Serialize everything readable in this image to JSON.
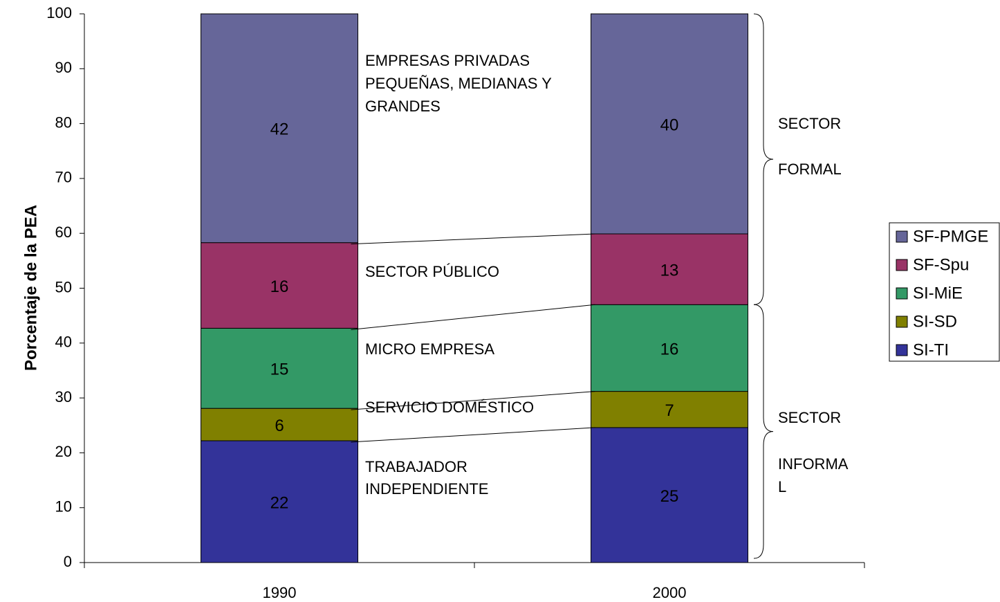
{
  "chart_data": {
    "type": "stacked_bar",
    "y_axis_label": "Porcentaje de la PEA",
    "categories": [
      "1990",
      "2000"
    ],
    "series": [
      {
        "name": "SI-TI",
        "color": "#333399",
        "values": [
          22.2,
          24.6
        ],
        "value_labels": [
          "22",
          "25"
        ]
      },
      {
        "name": "SI-SD",
        "color": "#808000",
        "values": [
          5.9,
          6.6
        ],
        "value_labels": [
          "6",
          "7"
        ]
      },
      {
        "name": "SI-MiE",
        "color": "#339966",
        "values": [
          14.6,
          15.8
        ],
        "value_labels": [
          "15",
          "16"
        ]
      },
      {
        "name": "SF-Spu",
        "color": "#993366",
        "values": [
          15.6,
          12.9
        ],
        "value_labels": [
          "16",
          "13"
        ]
      },
      {
        "name": "SF-PMGE",
        "color": "#666699",
        "values": [
          41.7,
          40.1
        ],
        "value_labels": [
          "42",
          "40"
        ]
      }
    ],
    "ylim": [
      0,
      100
    ],
    "yticks": [
      0,
      10,
      20,
      30,
      40,
      50,
      60,
      70,
      80,
      90,
      100
    ],
    "legend": "right",
    "annotations": [
      [
        "TRABAJADOR",
        "INDEPENDIENTE"
      ],
      [
        "SERVICIO DOMÉSTICO"
      ],
      [
        "MICRO EMPRESA"
      ],
      [
        "SECTOR PÚBLICO"
      ],
      [
        "EMPRESAS PRIVADAS",
        "PEQUEÑAS, MEDIANAS Y",
        "GRANDES"
      ]
    ],
    "sector_labels": [
      [
        "SECTOR",
        "FORMAL"
      ],
      [
        "SECTOR",
        "INFORMA",
        "L"
      ]
    ]
  }
}
